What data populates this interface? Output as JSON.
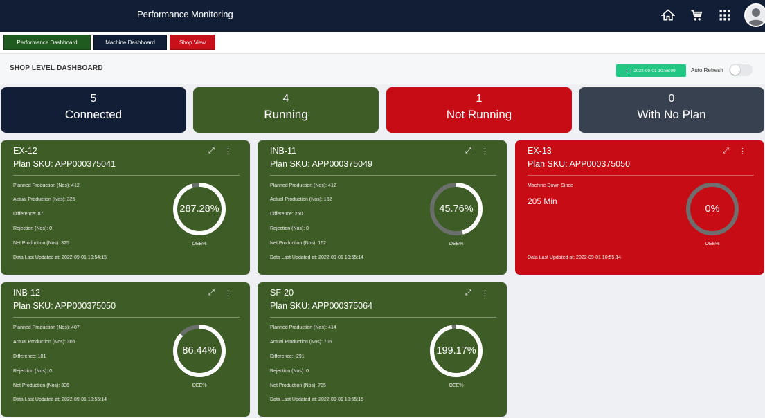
{
  "header": {
    "title": "Performance Monitoring",
    "icons": [
      "home-icon",
      "cart-icon",
      "apps-grid-icon",
      "user-avatar-icon"
    ]
  },
  "tabs": [
    {
      "label": "Performance Dashboard",
      "color": "#1f5a1f"
    },
    {
      "label": "Machine Dashboard",
      "color": "#111e36"
    },
    {
      "label": "Shop View",
      "color": "#c7101a"
    }
  ],
  "page": {
    "title": "SHOP LEVEL DASHBOARD",
    "date_badge": "2022-09-01 10:56:09",
    "auto_refresh_label": "Auto Refresh",
    "auto_refresh_on": false
  },
  "summary": [
    {
      "count": "5",
      "label": "Connected",
      "color": "#111e36"
    },
    {
      "count": "4",
      "label": "Running",
      "color": "#3e5c26"
    },
    {
      "count": "1",
      "label": "Not Running",
      "color": "#c80c15"
    },
    {
      "count": "0",
      "label": "With No Plan",
      "color": "#38414f"
    }
  ],
  "oee_label": "OEE%",
  "machines": [
    {
      "name": "EX-12",
      "sku": "Plan SKU: APP000375041",
      "status": "running",
      "planned": "Planned Production (Nos): 412",
      "actual": "Actual Production (Nos): 325",
      "difference": "Difference: 87",
      "rejection": "Rejection (Nos): 0",
      "net": "Net Production (Nos): 325",
      "updated": "Data Last Updated at: 2022-09-01 10:54:15",
      "oee": "287.28%",
      "oee_fraction": 0.95
    },
    {
      "name": "INB-11",
      "sku": "Plan SKU: APP000375049",
      "status": "running",
      "planned": "Planned Production (Nos): 412",
      "actual": "Actual Production (Nos): 162",
      "difference": "Difference: 250",
      "rejection": "Rejection (Nos): 0",
      "net": "Net Production (Nos): 162",
      "updated": "Data Last Updated at: 2022-09-01 10:55:14",
      "oee": "45.76%",
      "oee_fraction": 0.4576
    },
    {
      "name": "EX-13",
      "sku": "Plan SKU: APP000375050",
      "status": "down",
      "down_label": "Machine Down Since",
      "down_value": "205 Min",
      "updated": "Data Last Updated at: 2022-09-01 10:55:14",
      "oee": "0%",
      "oee_fraction": 0
    },
    {
      "name": "INB-12",
      "sku": "Plan SKU: APP000375050",
      "status": "running",
      "planned": "Planned Production (Nos): 407",
      "actual": "Actual Production (Nos): 306",
      "difference": "Difference: 101",
      "rejection": "Rejection (Nos): 0",
      "net": "Net Production (Nos): 306",
      "updated": "Data Last Updated at: 2022-09-01 10:55:14",
      "oee": "86.44%",
      "oee_fraction": 0.8644
    },
    {
      "name": "SF-20",
      "sku": "Plan SKU: APP000375064",
      "status": "running",
      "planned": "Planned Production (Nos): 414",
      "actual": "Actual Production (Nos): 705",
      "difference": "Difference: -291",
      "rejection": "Rejection (Nos): 0",
      "net": "Net Production (Nos): 705",
      "updated": "Data Last Updated at: 2022-09-01 10:55:15",
      "oee": "199.17%",
      "oee_fraction": 0.97
    }
  ],
  "colors": {
    "running": "#3e5c26",
    "down": "#c80c15",
    "navy": "#111e36",
    "badge": "#22c783"
  }
}
